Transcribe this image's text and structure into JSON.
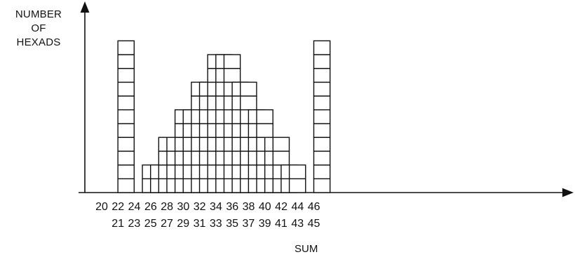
{
  "chart_data": {
    "type": "bar",
    "ylabel": [
      "NUMBER",
      "OF",
      "HEXADS"
    ],
    "xlabel": "SUM",
    "categories": [
      20,
      21,
      22,
      23,
      24,
      25,
      26,
      27,
      28,
      29,
      30,
      31,
      32,
      33,
      34,
      35,
      36,
      37,
      38,
      39,
      40,
      41,
      42,
      43,
      44,
      45,
      46
    ],
    "values": [
      0,
      11,
      0,
      0,
      2,
      2,
      4,
      4,
      6,
      6,
      8,
      8,
      10,
      10,
      10,
      8,
      8,
      6,
      6,
      4,
      4,
      2,
      2,
      0,
      0,
      11,
      0
    ],
    "ylim": [
      0,
      11
    ],
    "style": "stacked unit squares",
    "grid": false,
    "legend": "none"
  }
}
